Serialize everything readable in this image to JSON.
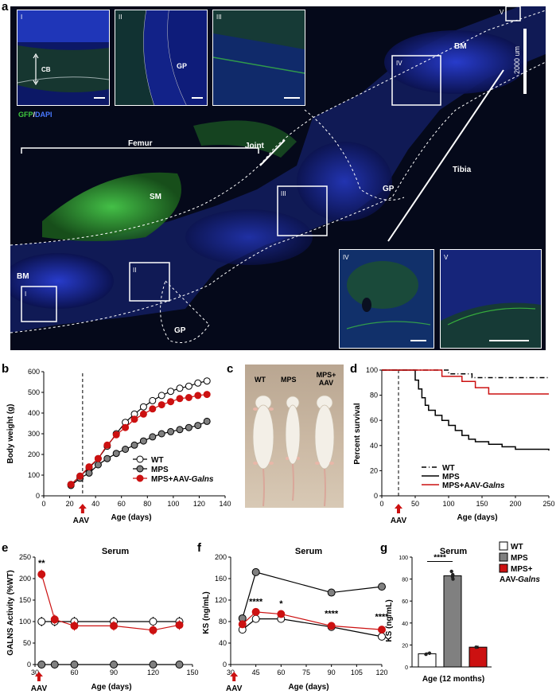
{
  "panel_labels": {
    "a": "a",
    "b": "b",
    "c": "c",
    "d": "d",
    "e": "e",
    "f": "f",
    "g": "g"
  },
  "micrograph": {
    "stain_gfp": "GFP",
    "stain_sep": "/",
    "stain_dapi": "DAPI",
    "scale": "2000 um",
    "labels": {
      "femur": "Femur",
      "joint": "Joint",
      "tibia": "Tibia",
      "sm": "SM",
      "bm": "BM",
      "bm2": "BM",
      "gp1": "GP",
      "gp2": "GP",
      "gp3": "GP",
      "cb": "CB"
    },
    "boxes": [
      "I",
      "II",
      "III",
      "IV",
      "V"
    ],
    "insets": [
      "I",
      "II",
      "III",
      "IV",
      "V"
    ]
  },
  "photo": {
    "labels": [
      "WT",
      "MPS",
      "MPS+\nAAV"
    ],
    "label_wt": "WT",
    "label_mps": "MPS",
    "label_mps2": "MPS+",
    "label_aav": "AAV"
  },
  "colors": {
    "wt_fill": "#ffffff",
    "mps_fill": "#808080",
    "aav": "#cc1111",
    "gfp": "#3ec93e",
    "dapi": "#2a3fd8"
  },
  "chart_data": [
    {
      "panel": "b",
      "type": "line",
      "title": "",
      "xlabel": "Age (days)",
      "ylabel": "Body weight (g)",
      "xlim": [
        0,
        140
      ],
      "ylim": [
        0,
        600
      ],
      "xticks": [
        0,
        20,
        40,
        60,
        80,
        100,
        120,
        140
      ],
      "yticks": [
        0,
        100,
        200,
        300,
        400,
        500,
        600
      ],
      "marker_text": "AAV",
      "aav_day": 30,
      "series": [
        {
          "name": "WT",
          "x": [
            21,
            28,
            35,
            42,
            49,
            56,
            63,
            70,
            77,
            84,
            91,
            98,
            105,
            112,
            119,
            126
          ],
          "values": [
            55,
            95,
            135,
            180,
            240,
            300,
            355,
            395,
            430,
            460,
            485,
            505,
            520,
            530,
            545,
            555
          ]
        },
        {
          "name": "MPS",
          "x": [
            21,
            28,
            35,
            42,
            49,
            56,
            63,
            70,
            77,
            84,
            91,
            98,
            105,
            112,
            119,
            126
          ],
          "values": [
            50,
            85,
            110,
            150,
            180,
            205,
            225,
            245,
            265,
            285,
            300,
            310,
            320,
            330,
            340,
            360
          ]
        },
        {
          "name": "MPS+AAV-Galns",
          "x": [
            21,
            28,
            35,
            42,
            49,
            56,
            63,
            70,
            77,
            84,
            91,
            98,
            105,
            112,
            119,
            126
          ],
          "values": [
            55,
            95,
            140,
            180,
            245,
            295,
            330,
            370,
            395,
            420,
            440,
            455,
            470,
            475,
            485,
            490
          ]
        }
      ],
      "legend": [
        "WT",
        "MPS",
        "MPS+AAV-Galns"
      ],
      "legend_prefix": "MPS+AAV-",
      "legend_gene": "Galns"
    },
    {
      "panel": "d",
      "type": "line",
      "title": "",
      "xlabel": "Age (days)",
      "ylabel": "Percent survival",
      "xlim": [
        0,
        250
      ],
      "ylim": [
        0,
        100
      ],
      "xticks": [
        0,
        50,
        100,
        150,
        200,
        250
      ],
      "yticks": [
        0,
        20,
        40,
        60,
        80,
        100
      ],
      "marker_text": "AAV",
      "aav_day": 25,
      "series": [
        {
          "name": "WT",
          "x": [
            0,
            70,
            100,
            135,
            200,
            250
          ],
          "values": [
            100,
            100,
            97,
            94,
            94,
            94
          ]
        },
        {
          "name": "MPS",
          "x": [
            0,
            45,
            50,
            55,
            60,
            65,
            70,
            80,
            90,
            100,
            110,
            120,
            130,
            140,
            160,
            180,
            200,
            250
          ],
          "values": [
            100,
            100,
            92,
            85,
            78,
            72,
            68,
            64,
            60,
            56,
            52,
            48,
            45,
            43,
            41,
            39,
            37,
            36
          ]
        },
        {
          "name": "MPS+AAV-Galns",
          "x": [
            0,
            60,
            90,
            120,
            140,
            160,
            250
          ],
          "values": [
            100,
            100,
            95,
            91,
            86,
            81,
            81
          ]
        }
      ],
      "legend": [
        "WT",
        "MPS",
        "MPS+AAV-Galns"
      ],
      "legend_prefix": "MPS+AAV-",
      "legend_gene": "Galns"
    },
    {
      "panel": "e",
      "type": "line",
      "title": "Serum",
      "xlabel": "Age (days)",
      "ylabel": "GALNS Activity (%WT)",
      "xlim": [
        30,
        150
      ],
      "ylim": [
        0,
        250
      ],
      "xticks": [
        30,
        60,
        90,
        120,
        150
      ],
      "yticks": [
        0,
        50,
        100,
        150,
        200,
        250
      ],
      "marker_text": "AAV",
      "annotation": "**",
      "series": [
        {
          "name": "WT",
          "x": [
            35,
            45,
            60,
            90,
            120,
            140
          ],
          "values": [
            100,
            100,
            100,
            100,
            100,
            100
          ]
        },
        {
          "name": "MPS",
          "x": [
            35,
            45,
            60,
            90,
            120,
            140
          ],
          "values": [
            0,
            0,
            0,
            0,
            0,
            0
          ]
        },
        {
          "name": "MPS+AAV-Galns",
          "x": [
            35,
            45,
            60,
            90,
            120,
            140
          ],
          "values": [
            210,
            105,
            90,
            90,
            80,
            92
          ]
        }
      ]
    },
    {
      "panel": "f",
      "type": "line",
      "title": "Serum",
      "xlabel": "Age (days)",
      "ylabel": "KS (ng/mL)",
      "xlim": [
        30,
        120
      ],
      "ylim": [
        0,
        200
      ],
      "xticks": [
        30,
        45,
        60,
        75,
        90,
        105,
        120
      ],
      "yticks": [
        0,
        40,
        80,
        120,
        160,
        200
      ],
      "marker_text": "AAV",
      "annotations": [
        "****",
        "*",
        "****",
        "****"
      ],
      "series": [
        {
          "name": "WT",
          "x": [
            37,
            45,
            60,
            90,
            120
          ],
          "values": [
            65,
            85,
            85,
            70,
            52
          ]
        },
        {
          "name": "MPS",
          "x": [
            37,
            45,
            60,
            90,
            120
          ],
          "values": [
            86,
            172,
            null,
            134,
            145
          ]
        },
        {
          "name": "MPS+AAV-Galns",
          "x": [
            37,
            45,
            60,
            90,
            120
          ],
          "values": [
            75,
            98,
            94,
            72,
            65
          ]
        }
      ]
    },
    {
      "panel": "g",
      "type": "bar",
      "title": "Serum",
      "xlabel": "Age (12 months)",
      "ylabel": "KS (ng/mL)",
      "ylim": [
        0,
        100
      ],
      "yticks": [
        0,
        20,
        40,
        60,
        80,
        100
      ],
      "categories": [
        "WT",
        "MPS",
        "MPS+AAV-Galns"
      ],
      "values": [
        12,
        83,
        18
      ],
      "annotation": "****",
      "legend": [
        "WT",
        "MPS",
        "MPS+\nAAV-Galns"
      ],
      "legend_l3a": "MPS+",
      "legend_l3b": "AAV-",
      "legend_gene": "Galns"
    }
  ]
}
